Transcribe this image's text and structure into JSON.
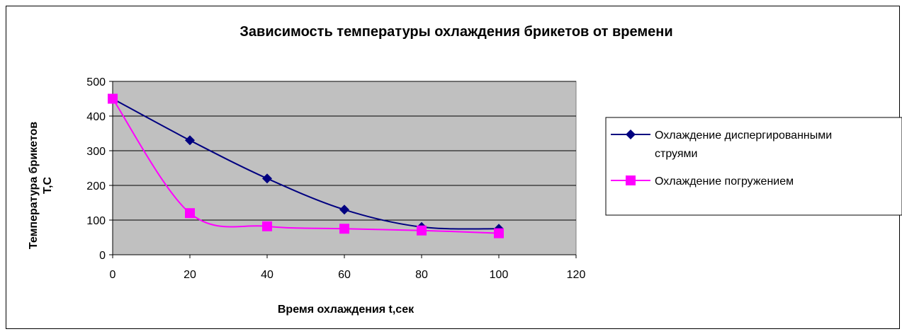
{
  "chart_data": {
    "type": "line",
    "title": "Зависимость температуры охлаждения брикетов от времени",
    "xlabel": "Время охлаждения t,сек",
    "ylabel": [
      "Температура брикетов",
      "T,C"
    ],
    "xlim": [
      0,
      120
    ],
    "ylim": [
      0,
      500
    ],
    "x_ticks": [
      "0",
      "20",
      "40",
      "60",
      "80",
      "100",
      "120"
    ],
    "y_ticks": [
      "0",
      "100",
      "200",
      "300",
      "400",
      "500"
    ],
    "grid": true,
    "legend_position": "right",
    "series": [
      {
        "name": [
          "Охлаждение диспергированными",
          "струями"
        ],
        "color": "#000080",
        "marker": "diamond",
        "points": [
          [
            0,
            450
          ],
          [
            20,
            330
          ],
          [
            40,
            220
          ],
          [
            60,
            130
          ],
          [
            80,
            80
          ],
          [
            100,
            75
          ]
        ]
      },
      {
        "name": [
          "Охлаждение погружением"
        ],
        "color": "#ff00ff",
        "marker": "square",
        "points": [
          [
            0,
            450
          ],
          [
            20,
            120
          ],
          [
            40,
            82
          ],
          [
            60,
            75
          ],
          [
            80,
            70
          ],
          [
            100,
            62
          ]
        ]
      }
    ]
  },
  "colors": {
    "plot_background": "#c0c0c0",
    "gridline": "#000000"
  }
}
